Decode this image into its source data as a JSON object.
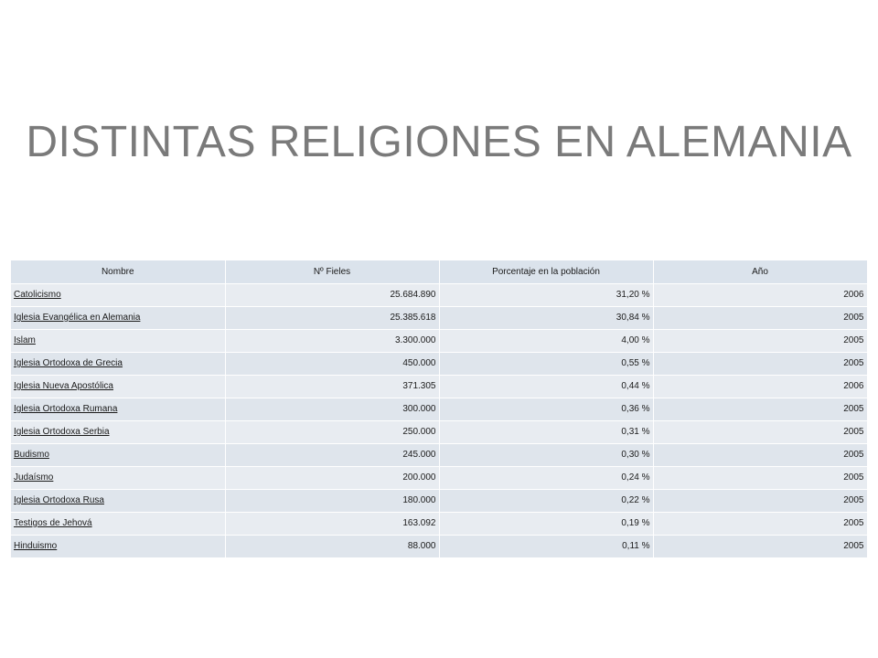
{
  "title": "DISTINTAS RELIGIONES EN ALEMANIA",
  "table": {
    "headers": [
      "Nombre",
      "Nº Fieles",
      "Porcentaje en la población",
      "Año"
    ],
    "rows": [
      [
        "Catolicismo",
        "25.684.890",
        "31,20 %",
        "2006"
      ],
      [
        "Iglesia Evangélica en Alemania",
        "25.385.618",
        "30,84 %",
        "2005"
      ],
      [
        "Islam",
        "3.300.000",
        "4,00 %",
        "2005"
      ],
      [
        "Iglesia Ortodoxa de Grecia",
        "450.000",
        "0,55 %",
        "2005"
      ],
      [
        "Iglesia Nueva Apostólica",
        "371.305",
        "0,44 %",
        "2006"
      ],
      [
        "Iglesia Ortodoxa Rumana",
        "300.000",
        "0,36 %",
        "2005"
      ],
      [
        "Iglesia Ortodoxa Serbia",
        "250.000",
        "0,31 %",
        "2005"
      ],
      [
        "Budismo",
        "245.000",
        "0,30 %",
        "2005"
      ],
      [
        "Judaísmo",
        "200.000",
        "0,24 %",
        "2005"
      ],
      [
        "Iglesia Ortodoxa Rusa",
        "180.000",
        "0,22 %",
        "2005"
      ],
      [
        "Testigos de Jehová",
        "163.092",
        "0,19 %",
        "2005"
      ],
      [
        "Hinduismo",
        "88.000",
        "0,11 %",
        "2005"
      ]
    ]
  }
}
